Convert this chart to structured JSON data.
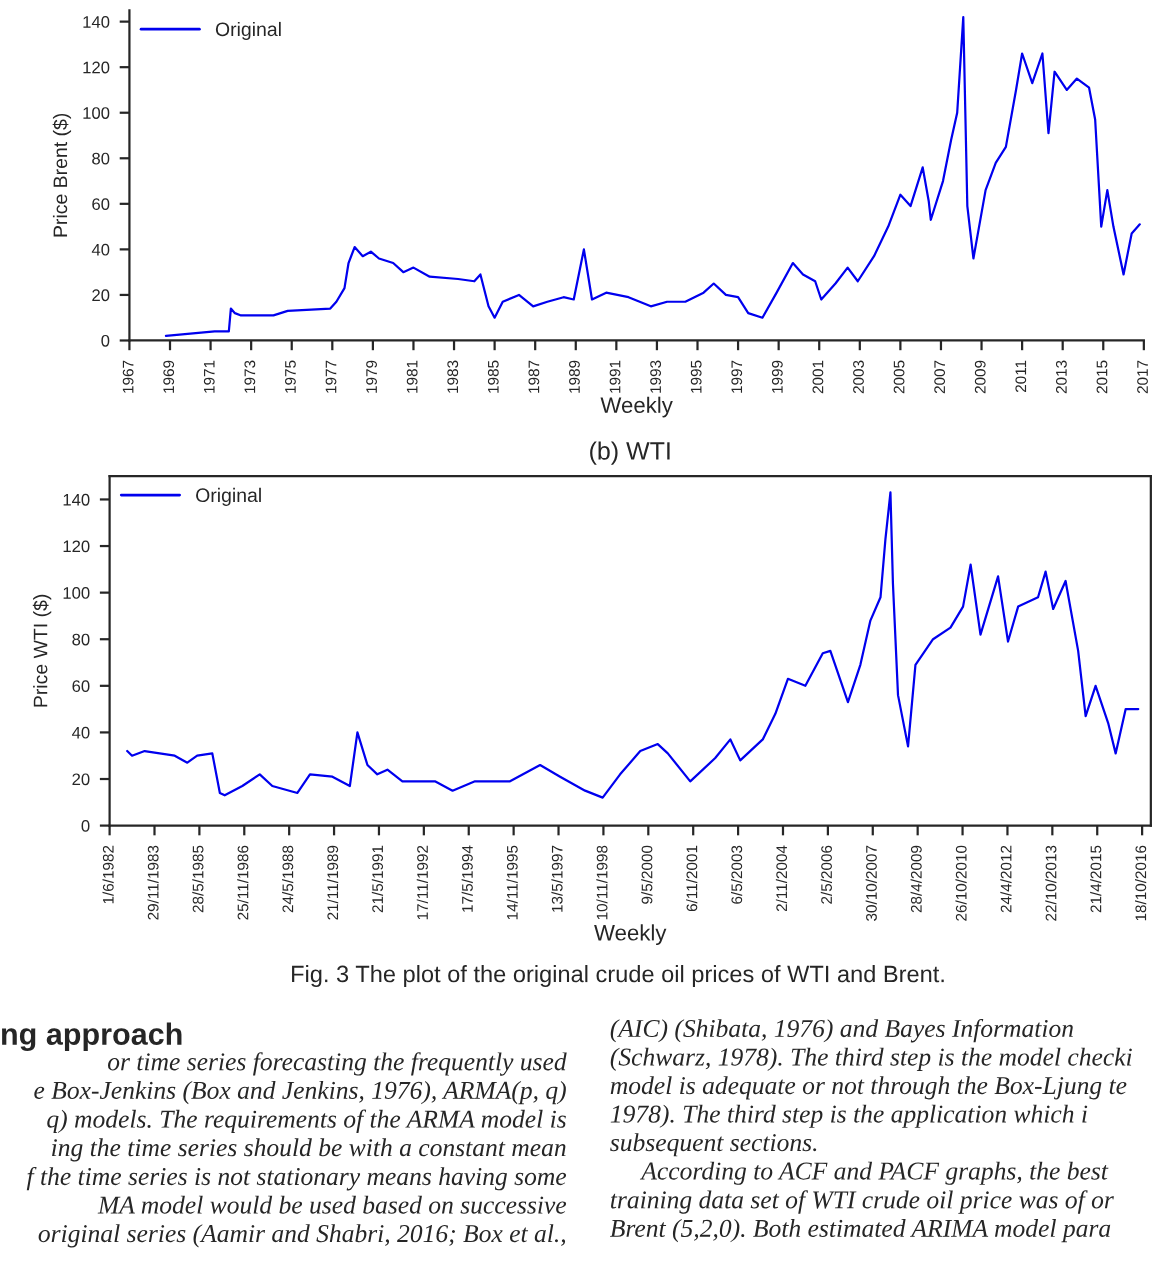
{
  "chart_data": [
    {
      "type": "line",
      "xlabel": "Weekly",
      "ylabel": "Price Brent ($)",
      "legend": "top left",
      "grid": false,
      "xlim": [
        1967,
        2017
      ],
      "xticks": [
        1967,
        1969,
        1971,
        1973,
        1975,
        1977,
        1979,
        1981,
        1983,
        1985,
        1987,
        1989,
        1991,
        1993,
        1995,
        1997,
        1999,
        2001,
        2003,
        2005,
        2007,
        2009,
        2011,
        2013,
        2015,
        2017
      ],
      "ylim": [
        0,
        145
      ],
      "yticks": [
        0,
        20,
        40,
        60,
        80,
        100,
        120,
        140
      ],
      "series": [
        {
          "name": "Original",
          "color": "#0000ee",
          "x": [
            1968.8,
            1971.2,
            1971.9,
            1972.0,
            1972.2,
            1972.5,
            1974.1,
            1974.8,
            1976.9,
            1977.2,
            1977.6,
            1977.8,
            1978.1,
            1978.5,
            1978.9,
            1979.3,
            1980.0,
            1980.5,
            1981.0,
            1981.8,
            1983.2,
            1984.0,
            1984.3,
            1984.7,
            1985.0,
            1985.4,
            1986.2,
            1986.9,
            1987.6,
            1988.4,
            1988.9,
            1989.4,
            1989.8,
            1990.5,
            1991.6,
            1992.7,
            1993.5,
            1994.4,
            1995.3,
            1995.8,
            1996.4,
            1997.0,
            1997.5,
            1998.2,
            1998.9,
            1999.7,
            2000.2,
            2000.8,
            2001.1,
            2001.8,
            2002.4,
            2002.9,
            2003.7,
            2004.4,
            2005.0,
            2005.5,
            2006.1,
            2006.4,
            2006.5,
            2007.1,
            2007.5,
            2007.8,
            2008.1,
            2008.3,
            2008.6,
            2009.2,
            2009.7,
            2010.2,
            2010.7,
            2011.0,
            2011.5,
            2012.0,
            2012.3,
            2012.6,
            2013.2,
            2013.7,
            2014.3,
            2014.6,
            2014.9,
            2015.2,
            2015.5,
            2016.0,
            2016.4,
            2016.8
          ],
          "values": [
            2,
            4,
            4,
            14,
            12,
            11,
            11,
            13,
            14,
            17,
            23,
            34,
            41,
            37,
            39,
            36,
            34,
            30,
            32,
            28,
            27,
            26,
            29,
            15,
            10,
            17,
            20,
            15,
            17,
            19,
            18,
            40,
            18,
            21,
            19,
            15,
            17,
            17,
            21,
            25,
            20,
            19,
            12,
            10,
            21,
            34,
            29,
            26,
            18,
            25,
            32,
            26,
            37,
            50,
            64,
            59,
            76,
            61,
            53,
            70,
            88,
            100,
            142,
            59,
            36,
            66,
            78,
            85,
            110,
            126,
            113,
            126,
            91,
            118,
            110,
            115,
            111,
            97,
            50,
            66,
            50,
            29,
            47,
            51
          ]
        }
      ]
    },
    {
      "type": "line",
      "title": "(b) WTI",
      "xlabel": "Weekly",
      "ylabel": "Price WTI ($)",
      "legend": "top left",
      "grid": false,
      "xlim": [
        "1982-06-01",
        "2017-02-01"
      ],
      "xticks": [
        {
          "value": "1982-06-01",
          "label": "1/6/1982"
        },
        {
          "value": "1983-11-29",
          "label": "29/11/1983"
        },
        {
          "value": "1985-05-28",
          "label": "28/5/1985"
        },
        {
          "value": "1986-11-25",
          "label": "25/11/1986"
        },
        {
          "value": "1988-05-24",
          "label": "24/5/1988"
        },
        {
          "value": "1989-11-21",
          "label": "21/11/1989"
        },
        {
          "value": "1991-05-21",
          "label": "21/5/1991"
        },
        {
          "value": "1992-11-17",
          "label": "17/11/1992"
        },
        {
          "value": "1994-05-17",
          "label": "17/5/1994"
        },
        {
          "value": "1995-11-14",
          "label": "14/11/1995"
        },
        {
          "value": "1997-05-13",
          "label": "13/5/1997"
        },
        {
          "value": "1998-11-10",
          "label": "10/11/1998"
        },
        {
          "value": "2000-05-09",
          "label": "9/5/2000"
        },
        {
          "value": "2001-11-06",
          "label": "6/11/2001"
        },
        {
          "value": "2003-05-06",
          "label": "6/5/2003"
        },
        {
          "value": "2004-11-02",
          "label": "2/11/2004"
        },
        {
          "value": "2006-05-02",
          "label": "2/5/2006"
        },
        {
          "value": "2007-10-30",
          "label": "30/10/2007"
        },
        {
          "value": "2009-04-28",
          "label": "28/4/2009"
        },
        {
          "value": "2010-10-26",
          "label": "26/10/2010"
        },
        {
          "value": "2012-04-24",
          "label": "24/4/2012"
        },
        {
          "value": "2013-10-22",
          "label": "22/10/2013"
        },
        {
          "value": "2015-04-21",
          "label": "21/4/2015"
        },
        {
          "value": "2016-10-18",
          "label": "18/10/2016"
        }
      ],
      "ylim": [
        0,
        150
      ],
      "yticks": [
        0,
        20,
        40,
        60,
        80,
        100,
        120,
        140
      ],
      "series": [
        {
          "name": "Original",
          "color": "#0000ee",
          "x": [
            "1983-01",
            "1983-03",
            "1983-08",
            "1984-08",
            "1985-01",
            "1985-05",
            "1985-11",
            "1986-02",
            "1986-04",
            "1986-11",
            "1987-06",
            "1987-11",
            "1988-09",
            "1989-02",
            "1989-11",
            "1990-06",
            "1990-09",
            "1991-01",
            "1991-05",
            "1991-09",
            "1992-03",
            "1993-04",
            "1993-11",
            "1994-08",
            "1995-10",
            "1996-10",
            "1997-06",
            "1998-04",
            "1998-11",
            "1999-06",
            "2000-02",
            "2000-09",
            "2001-01",
            "2001-10",
            "2002-08",
            "2003-02",
            "2003-06",
            "2004-03",
            "2004-08",
            "2005-01",
            "2005-08",
            "2006-03",
            "2006-06",
            "2007-01",
            "2007-06",
            "2007-10",
            "2008-02",
            "2008-04",
            "2008-06",
            "2008-07",
            "2008-09",
            "2009-01",
            "2009-04",
            "2009-11",
            "2010-06",
            "2010-11",
            "2011-02",
            "2011-06",
            "2012-01",
            "2012-05",
            "2012-09",
            "2013-05",
            "2013-08",
            "2013-11",
            "2014-04",
            "2014-09",
            "2014-12",
            "2015-04",
            "2015-09",
            "2015-12",
            "2016-04",
            "2016-09"
          ],
          "values": [
            32,
            30,
            32,
            30,
            27,
            30,
            31,
            14,
            13,
            17,
            22,
            17,
            14,
            22,
            21,
            17,
            40,
            26,
            22,
            24,
            19,
            19,
            15,
            19,
            19,
            26,
            21,
            15,
            12,
            22,
            32,
            35,
            31,
            19,
            29,
            37,
            28,
            37,
            48,
            63,
            60,
            74,
            75,
            53,
            69,
            88,
            98,
            123,
            143,
            104,
            56,
            34,
            69,
            80,
            85,
            94,
            112,
            82,
            107,
            79,
            94,
            98,
            109,
            93,
            105,
            75,
            47,
            60,
            44,
            31,
            50,
            50
          ]
        }
      ],
      "annotations": [
        "Fig. 3 The plot of the original crude oil prices of WTI and Brent.",
        "ng approach",
        "or time series forecasting the frequently used\ne Box-Jenkins (Box and Jenkins, 1976), ARMA(p, q)\nq) models. The requirements of the ARMA model is\ning the time series should be with a constant mean\nf the time series is not stationary means having some\nMA model would be used based on successive\n original series (Aamir and Shabri, 2016; Box et al.,",
        "(AIC) (Shibata, 1976) and Bayes Information\n(Schwarz, 1978). The third step is the model checki\nmodel is adequate or not through the Box-Ljung te\n1978). The third step is the application which i\nsubsequent sections.\n     According to ACF and PACF graphs, the best\ntraining data set of WTI crude oil price was of or\nBrent (5,2,0). Both estimated ARIMA model para"
      ]
    }
  ]
}
